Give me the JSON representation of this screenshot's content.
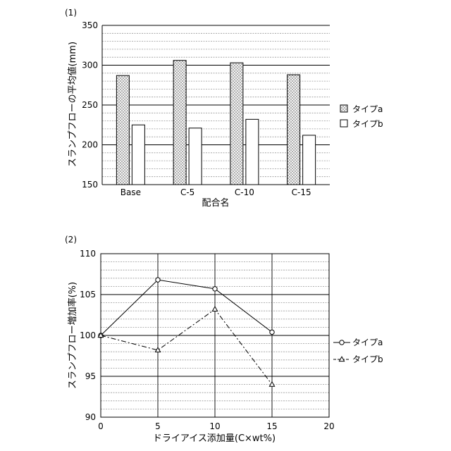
{
  "chart_data": [
    {
      "type": "bar",
      "panel_label": "(1)",
      "xlabel": "配合名",
      "ylabel": "スランプフローの平均値(mm)",
      "categories": [
        "Base",
        "C-5",
        "C-10",
        "C-15"
      ],
      "series": [
        {
          "name": "タイプa",
          "values": [
            287,
            306,
            303,
            288
          ],
          "fill": "dotted"
        },
        {
          "name": "タイプb",
          "values": [
            225,
            221,
            232,
            212
          ],
          "fill": "white"
        }
      ],
      "ylim": [
        150,
        350
      ],
      "yticks": [
        150,
        200,
        250,
        300,
        350
      ],
      "minor_grid_step": 10,
      "grid": true,
      "legend_position": "right"
    },
    {
      "type": "line",
      "panel_label": "(2)",
      "xlabel": "ドライアイス添加量(C×wt%)",
      "ylabel": "スランプフロー増加率(%)",
      "xlim": [
        0,
        20
      ],
      "ylim": [
        90,
        110
      ],
      "xticks": [
        0,
        5,
        10,
        15,
        20
      ],
      "yticks": [
        90,
        95,
        100,
        105,
        110
      ],
      "minor_grid_step": 1,
      "grid": true,
      "legend_position": "right",
      "series": [
        {
          "name": "タイプa",
          "marker": "circle",
          "line": "solid",
          "x": [
            0,
            5,
            10,
            15
          ],
          "y": [
            100,
            106.8,
            105.7,
            100.4
          ]
        },
        {
          "name": "タイプb",
          "marker": "triangle",
          "line": "dashdot",
          "x": [
            0,
            5,
            10,
            15
          ],
          "y": [
            100,
            98.2,
            103.2,
            94
          ]
        }
      ]
    }
  ]
}
